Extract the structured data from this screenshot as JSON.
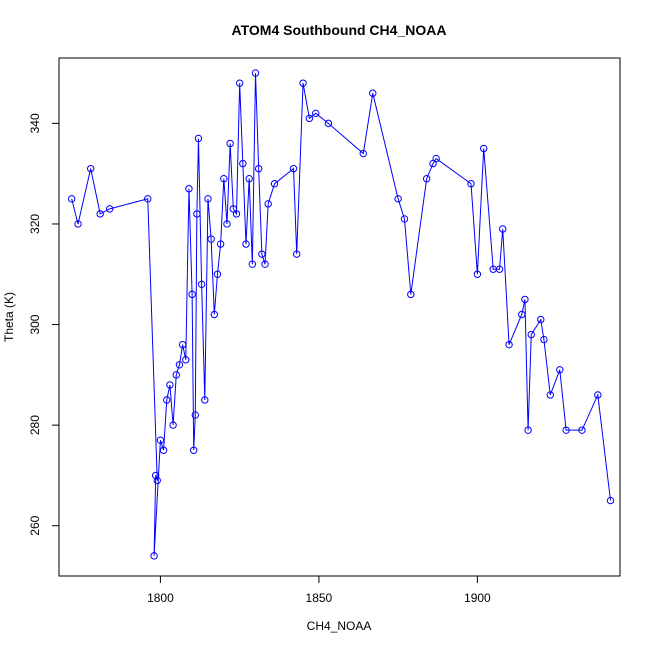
{
  "chart_data": {
    "type": "line",
    "title": "ATOM4 Southbound CH4_NOAA",
    "xlabel": "CH4_NOAA",
    "ylabel": "Theta (K)",
    "xlim": [
      1768,
      1945
    ],
    "ylim": [
      250,
      353
    ],
    "xticks": [
      1800,
      1850,
      1900
    ],
    "yticks": [
      260,
      280,
      300,
      320,
      340
    ],
    "grid": false,
    "legend": "none",
    "marker": "open-circle",
    "colors": {
      "series": "#0000ff",
      "axis": "#000000",
      "background": "#ffffff"
    },
    "series": [
      {
        "color": "#0000ff",
        "x": [
          1772,
          1774,
          1778,
          1781,
          1784,
          1796,
          1799,
          1798.5,
          1798,
          1800,
          1801,
          1802,
          1803,
          1804,
          1805,
          1806,
          1807,
          1808,
          1809,
          1810,
          1810.5,
          1811,
          1811.5,
          1812,
          1813,
          1814,
          1815,
          1816,
          1817,
          1818,
          1819,
          1820,
          1821,
          1822,
          1823,
          1824,
          1825,
          1826,
          1827,
          1828,
          1829,
          1830,
          1831,
          1832,
          1833,
          1834,
          1836,
          1842,
          1843,
          1845,
          1847,
          1849,
          1853,
          1864,
          1867,
          1875,
          1877,
          1879,
          1884,
          1886,
          1887,
          1898,
          1900,
          1902,
          1905,
          1907,
          1908,
          1910,
          1914,
          1915,
          1916,
          1917,
          1920,
          1921,
          1923,
          1926,
          1928,
          1933,
          1938,
          1942
        ],
        "y": [
          325,
          320,
          331,
          322,
          323,
          325,
          269,
          270,
          254,
          277,
          275,
          285,
          288,
          280,
          290,
          292,
          296,
          293,
          327,
          306,
          275,
          282,
          322,
          337,
          308,
          285,
          325,
          317,
          302,
          310,
          316,
          329,
          320,
          336,
          323,
          322,
          348,
          332,
          316,
          329,
          312,
          350,
          331,
          314,
          312,
          324,
          328,
          331,
          314,
          348,
          341,
          342,
          340,
          334,
          346,
          325,
          321,
          306,
          329,
          332,
          333,
          328,
          310,
          335,
          311,
          311,
          319,
          296,
          302,
          305,
          279,
          298,
          301,
          297,
          286,
          291,
          279,
          279,
          286,
          265
        ]
      }
    ]
  }
}
